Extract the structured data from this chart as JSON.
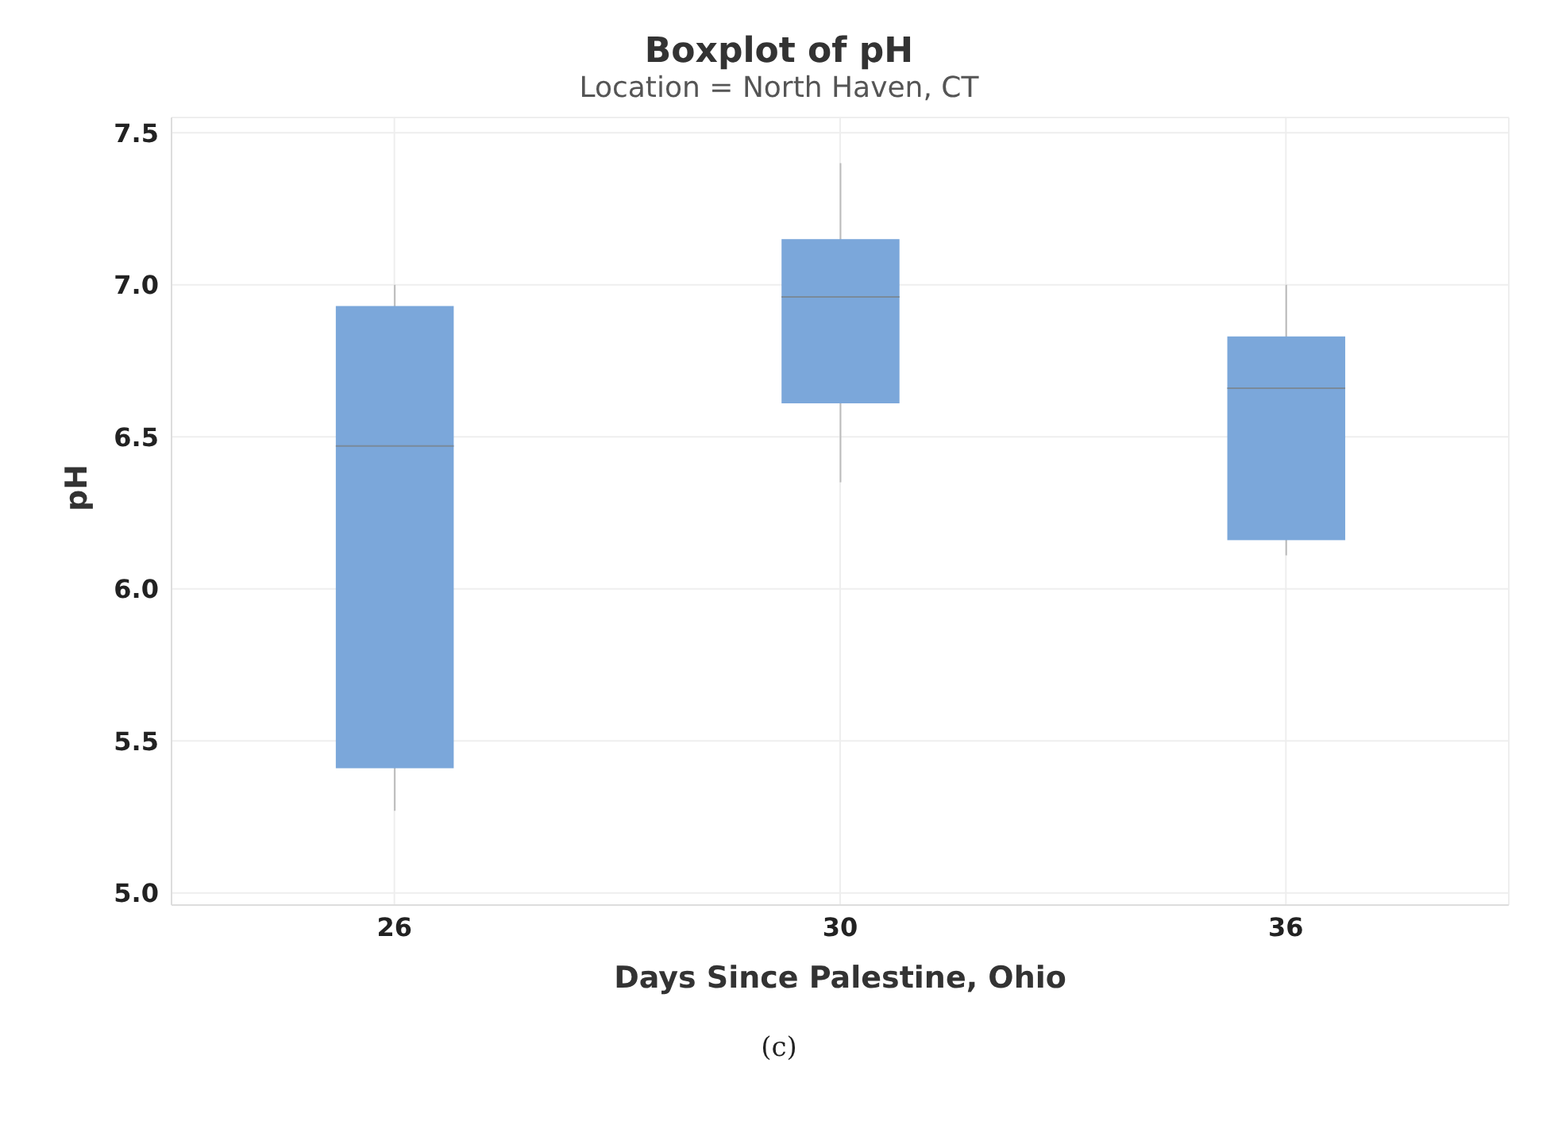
{
  "chart_data": {
    "type": "box",
    "title": "Boxplot of pH",
    "subtitle": "Location = North Haven, CT",
    "xlabel": "Days Since Palestine, Ohio",
    "ylabel": "pH",
    "annotations": [
      "(c)"
    ],
    "categories": [
      "26",
      "30",
      "36"
    ],
    "boxes": [
      {
        "low": 5.27,
        "q1": 5.41,
        "median": 6.47,
        "q3": 6.93,
        "high": 7.0
      },
      {
        "low": 6.35,
        "q1": 6.61,
        "median": 6.96,
        "q3": 7.15,
        "high": 7.4
      },
      {
        "low": 6.11,
        "q1": 6.16,
        "median": 6.66,
        "q3": 6.83,
        "high": 7.0
      }
    ],
    "color": "#7ba7da",
    "ylim": [
      4.96,
      7.55
    ],
    "yticks": [
      {
        "value": 5,
        "label": "5.0"
      },
      {
        "value": 5.5,
        "label": "5.5"
      },
      {
        "value": 6,
        "label": "6.0"
      },
      {
        "value": 6.5,
        "label": "6.5"
      },
      {
        "value": 7,
        "label": "7.0"
      },
      {
        "value": 7.5,
        "label": "7.5"
      }
    ],
    "grid": true
  }
}
